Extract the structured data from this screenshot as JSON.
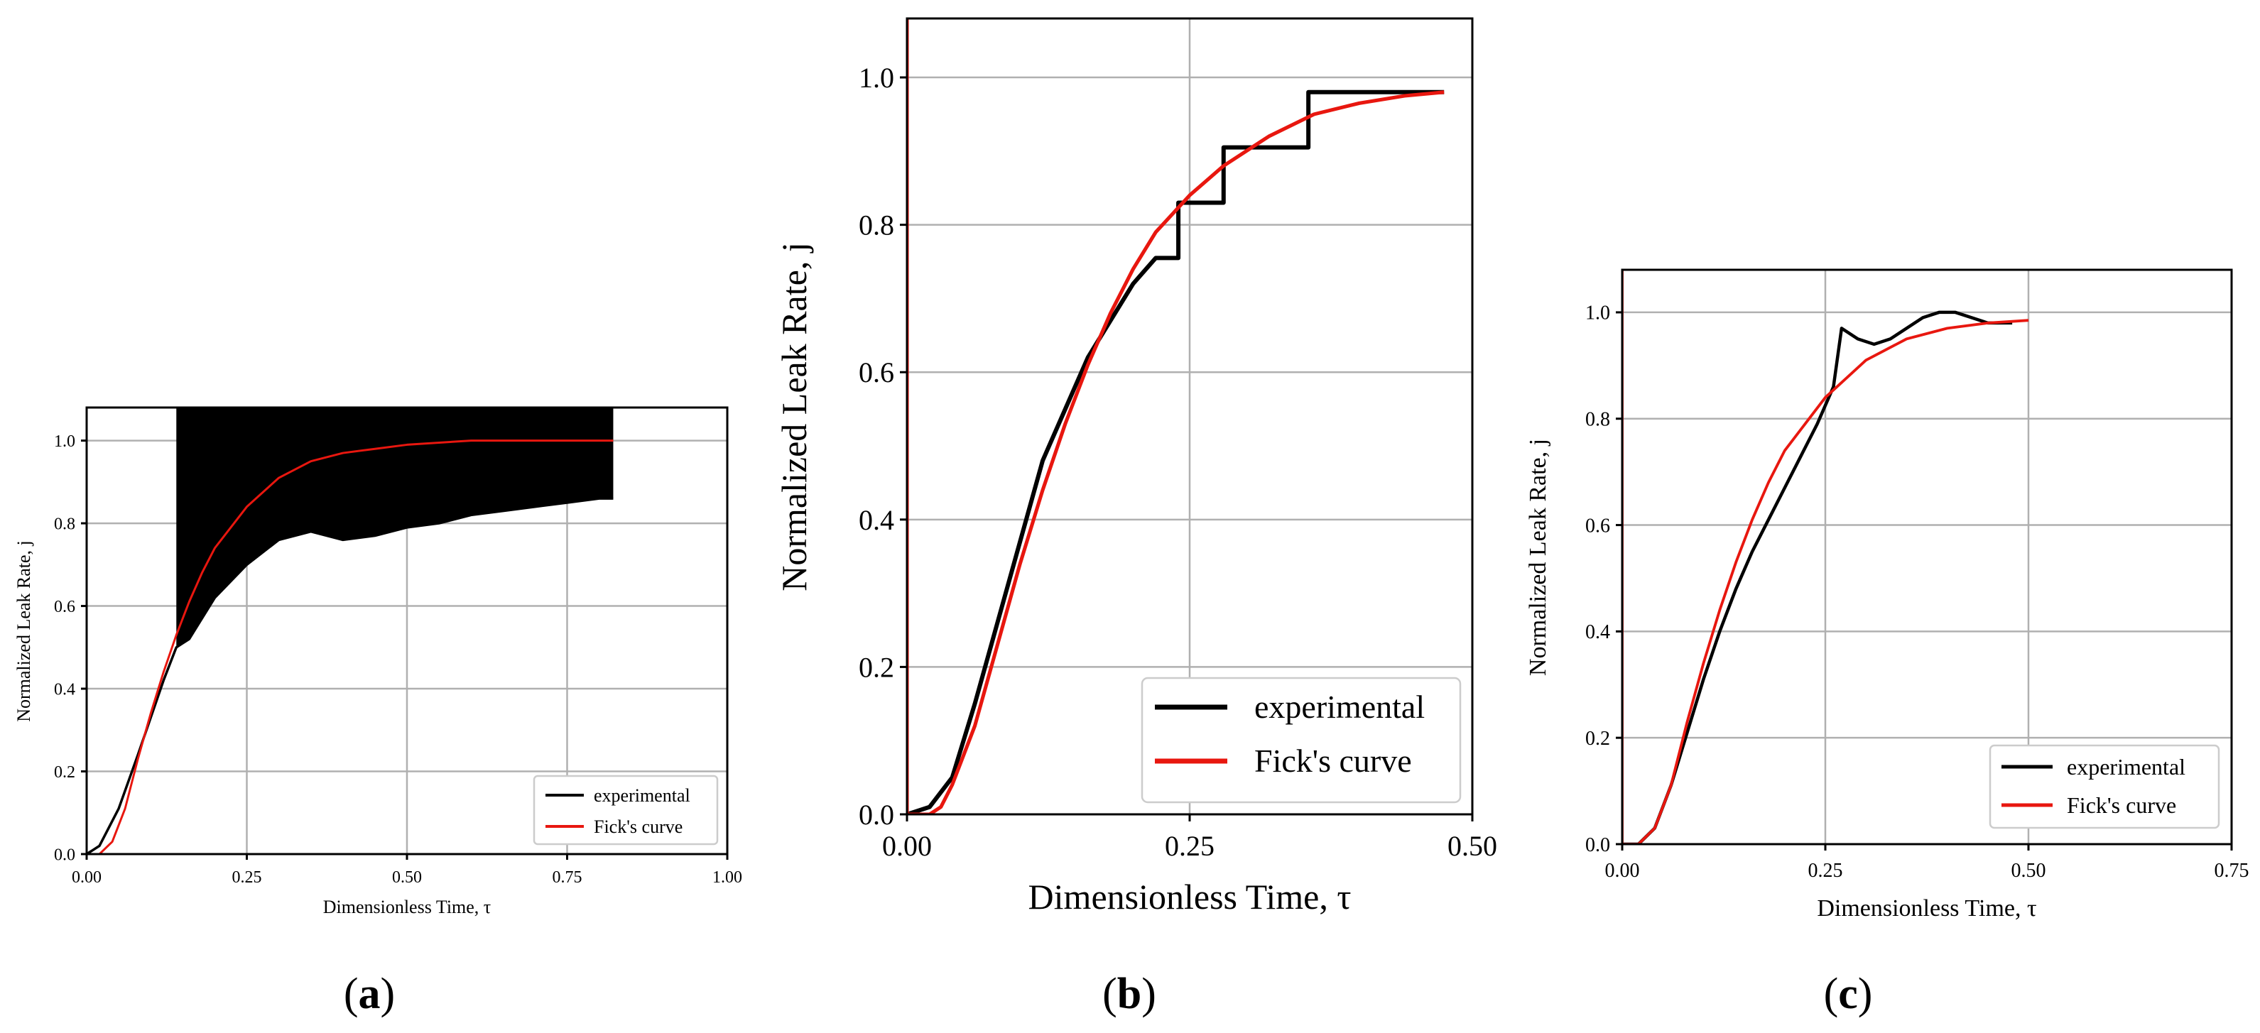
{
  "colors": {
    "experimental": "#000000",
    "fick": "#e8170f"
  },
  "panels": [
    {
      "label": "a"
    },
    {
      "label": "b"
    },
    {
      "label": "c"
    }
  ],
  "chart_data": [
    {
      "type": "line",
      "panel_label": "a",
      "xlabel": "Dimensionless Time, τ",
      "ylabel": "Normalized Leak Rate, j",
      "xlim": [
        0,
        1.0
      ],
      "ylim": [
        0,
        1.08
      ],
      "xticks": [
        0,
        0.25,
        0.5,
        0.75,
        1.0
      ],
      "xtick_labels": [
        "0.00",
        "0.25",
        "0.50",
        "0.75",
        "1.00"
      ],
      "yticks": [
        0,
        0.2,
        0.4,
        0.6,
        0.8,
        1.0
      ],
      "ytick_labels": [
        "0.0",
        "0.2",
        "0.4",
        "0.6",
        "0.8",
        "1.0"
      ],
      "grid": true,
      "legend_position": "lower right",
      "series": [
        {
          "name": "experimental",
          "x": [
            0.0,
            0.02,
            0.05,
            0.08,
            0.1,
            0.12,
            0.14,
            0.16,
            0.2,
            0.25,
            0.3,
            0.35,
            0.4,
            0.45,
            0.5,
            0.55,
            0.6,
            0.65,
            0.7,
            0.75,
            0.8,
            0.822
          ],
          "y": [
            0.0,
            0.02,
            0.11,
            0.24,
            0.33,
            0.42,
            0.5,
            0.52,
            0.62,
            0.7,
            0.76,
            0.78,
            0.76,
            0.77,
            0.79,
            0.8,
            0.82,
            0.83,
            0.84,
            0.85,
            0.86,
            0.86
          ],
          "upper_band": {
            "x_start": 0.14,
            "x_end": 0.822,
            "y": 1.08
          }
        },
        {
          "name": "Fick's curve",
          "x": [
            0.0,
            0.02,
            0.04,
            0.06,
            0.08,
            0.1,
            0.12,
            0.14,
            0.16,
            0.18,
            0.2,
            0.25,
            0.3,
            0.35,
            0.4,
            0.45,
            0.5,
            0.6,
            0.7,
            0.822
          ],
          "y": [
            0.0,
            0.0,
            0.03,
            0.11,
            0.23,
            0.34,
            0.44,
            0.53,
            0.61,
            0.68,
            0.74,
            0.84,
            0.91,
            0.95,
            0.97,
            0.98,
            0.99,
            1.0,
            1.0,
            1.0
          ]
        }
      ]
    },
    {
      "type": "line",
      "panel_label": "b",
      "xlabel": "Dimensionless Time, τ",
      "ylabel": "Normalized Leak Rate, j",
      "xlim": [
        0,
        0.5
      ],
      "ylim": [
        0,
        1.08
      ],
      "xticks": [
        0,
        0.25,
        0.5
      ],
      "xtick_labels": [
        "0.00",
        "0.25",
        "0.50"
      ],
      "yticks": [
        0,
        0.2,
        0.4,
        0.6,
        0.8,
        1.0
      ],
      "ytick_labels": [
        "0.0",
        "0.2",
        "0.4",
        "0.6",
        "0.8",
        "1.0"
      ],
      "grid": true,
      "legend_position": "lower right",
      "series": [
        {
          "name": "experimental",
          "x": [
            0.0,
            0.02,
            0.04,
            0.06,
            0.08,
            0.1,
            0.12,
            0.14,
            0.16,
            0.18,
            0.2,
            0.22,
            0.24,
            0.24,
            0.28,
            0.28,
            0.355,
            0.355,
            0.475
          ],
          "y": [
            0.0,
            0.01,
            0.05,
            0.15,
            0.26,
            0.37,
            0.48,
            0.55,
            0.62,
            0.67,
            0.72,
            0.755,
            0.755,
            0.83,
            0.83,
            0.905,
            0.905,
            0.98,
            0.98
          ]
        },
        {
          "name": "Fick's curve",
          "x": [
            0.0,
            0.02,
            0.03,
            0.04,
            0.06,
            0.08,
            0.1,
            0.12,
            0.14,
            0.16,
            0.18,
            0.2,
            0.22,
            0.25,
            0.28,
            0.32,
            0.36,
            0.4,
            0.44,
            0.475
          ],
          "y": [
            0.0,
            0.0,
            0.01,
            0.04,
            0.12,
            0.23,
            0.34,
            0.44,
            0.53,
            0.61,
            0.68,
            0.74,
            0.79,
            0.84,
            0.88,
            0.92,
            0.95,
            0.965,
            0.975,
            0.98
          ]
        }
      ]
    },
    {
      "type": "line",
      "panel_label": "c",
      "xlabel": "Dimensionless Time, τ",
      "ylabel": "Normalized Leak Rate, j",
      "xlim": [
        0,
        0.75
      ],
      "ylim": [
        0,
        1.08
      ],
      "xticks": [
        0,
        0.25,
        0.5,
        0.75
      ],
      "xtick_labels": [
        "0.00",
        "0.25",
        "0.50",
        "0.75"
      ],
      "yticks": [
        0,
        0.2,
        0.4,
        0.6,
        0.8,
        1.0
      ],
      "ytick_labels": [
        "0.0",
        "0.2",
        "0.4",
        "0.6",
        "0.8",
        "1.0"
      ],
      "grid": true,
      "legend_position": "lower right",
      "series": [
        {
          "name": "experimental",
          "x": [
            0.0,
            0.02,
            0.04,
            0.06,
            0.08,
            0.1,
            0.12,
            0.14,
            0.16,
            0.18,
            0.2,
            0.22,
            0.24,
            0.26,
            0.27,
            0.29,
            0.31,
            0.33,
            0.35,
            0.37,
            0.39,
            0.41,
            0.43,
            0.45,
            0.48
          ],
          "y": [
            0.0,
            0.0,
            0.03,
            0.11,
            0.21,
            0.31,
            0.4,
            0.48,
            0.55,
            0.61,
            0.67,
            0.73,
            0.79,
            0.86,
            0.97,
            0.95,
            0.94,
            0.95,
            0.97,
            0.99,
            1.0,
            1.0,
            0.99,
            0.98,
            0.98
          ]
        },
        {
          "name": "Fick's curve",
          "x": [
            0.0,
            0.02,
            0.04,
            0.06,
            0.08,
            0.1,
            0.12,
            0.14,
            0.16,
            0.18,
            0.2,
            0.25,
            0.3,
            0.35,
            0.4,
            0.45,
            0.5
          ],
          "y": [
            0.0,
            0.0,
            0.03,
            0.11,
            0.23,
            0.34,
            0.44,
            0.53,
            0.61,
            0.68,
            0.74,
            0.84,
            0.91,
            0.95,
            0.97,
            0.98,
            0.985
          ]
        }
      ]
    }
  ]
}
